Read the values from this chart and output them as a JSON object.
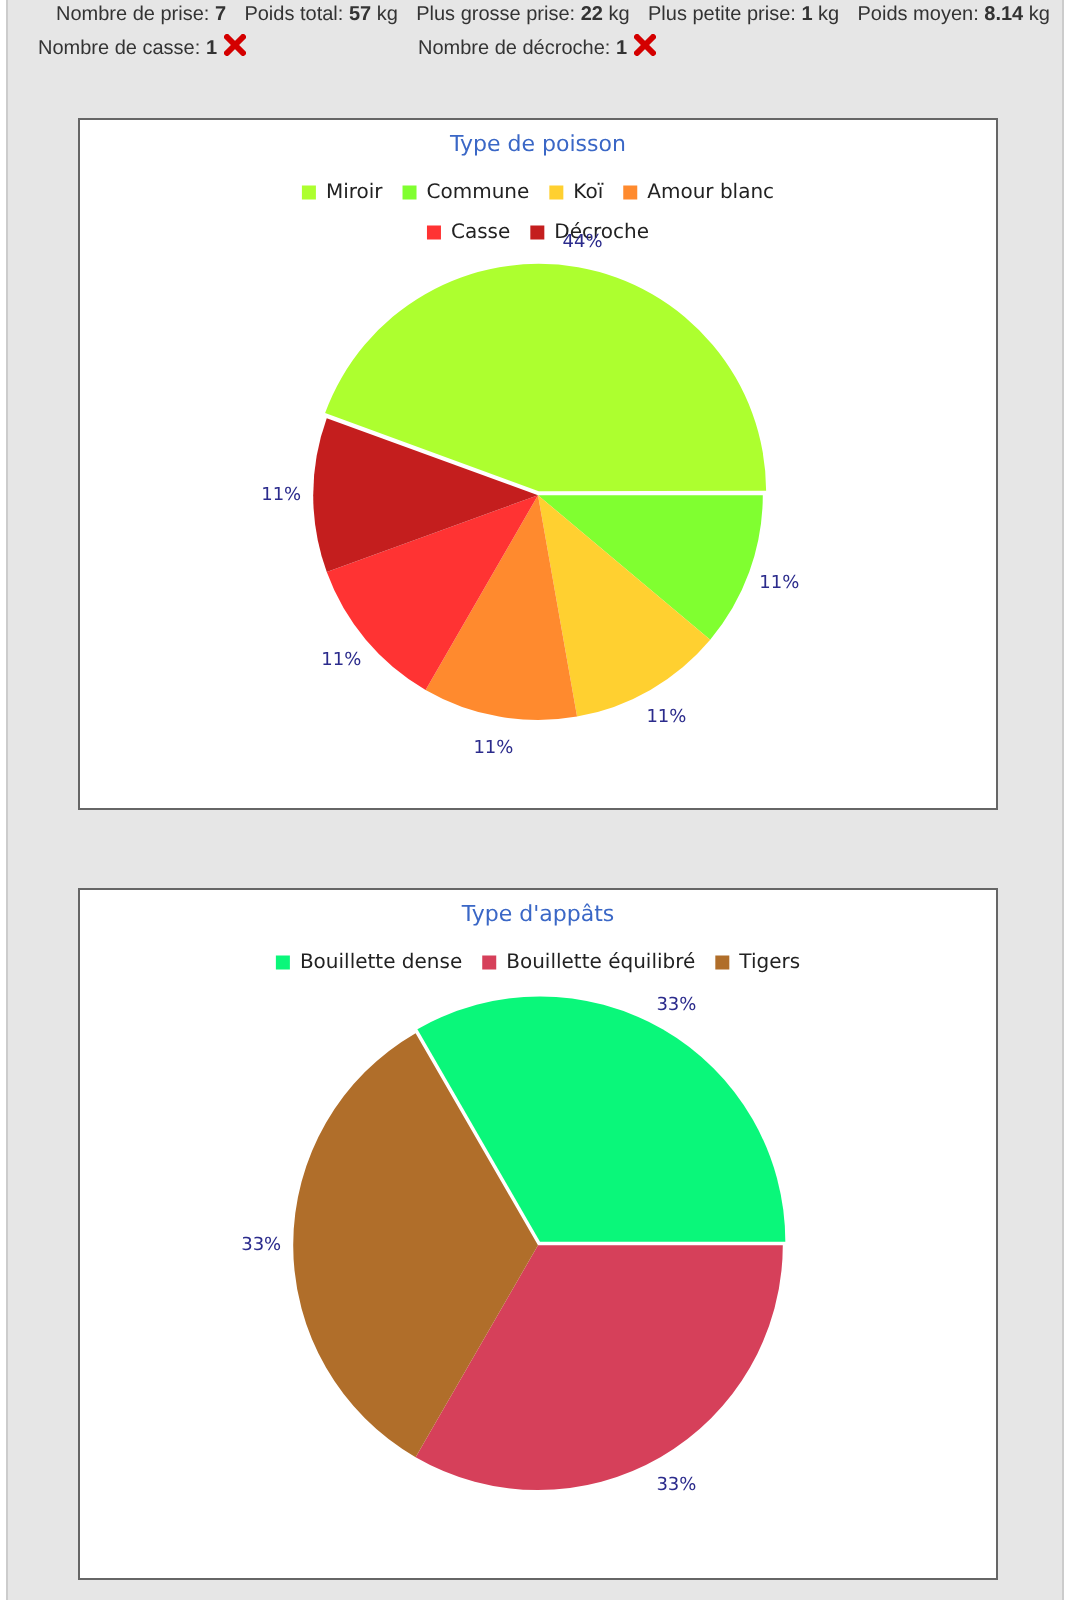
{
  "chart_data": [
    {
      "type": "other",
      "annotations": [
        "Nombre de prise: 7",
        "Poids total: 57 kg",
        "Plus grosse prise: 22 kg",
        "Plus petite prise: 1 kg",
        "Poids moyen: 8.14 kg",
        "Nombre de casse: 1",
        "Nombre de décroche: 1"
      ]
    },
    {
      "type": "pie",
      "title": "Type de poisson",
      "categories": [
        "Miroir",
        "Commune",
        "Koï",
        "Amour blanc",
        "Casse",
        "Décroche"
      ],
      "values": [
        44,
        11,
        11,
        11,
        11,
        11
      ],
      "colors": [
        "#adff2f",
        "#80ff30",
        "#ffd030",
        "#ff8a2e",
        "#ff3333",
        "#c41e1e"
      ],
      "value_labels": [
        "44%",
        "11%",
        "11%",
        "11%",
        "11%",
        "11%"
      ],
      "legend": "top"
    },
    {
      "type": "pie",
      "title": "Type d'appâts",
      "categories": [
        "Bouillette dense",
        "Bouillette équilibré",
        "Tigers"
      ],
      "values": [
        33,
        33,
        33
      ],
      "colors": [
        "#0af77a",
        "#d6405a",
        "#b06e2a"
      ],
      "value_labels": [
        "33%",
        "33%",
        "33%"
      ],
      "legend": "top"
    }
  ]
}
